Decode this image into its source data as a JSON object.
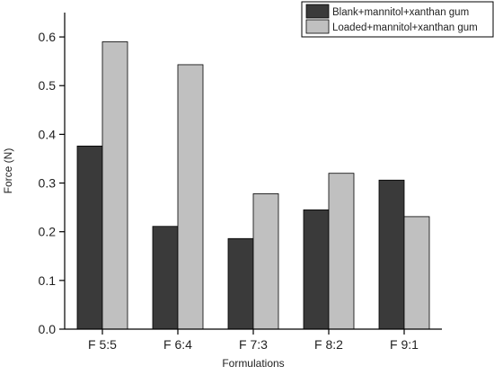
{
  "chart_data": {
    "type": "bar",
    "xlabel": "Formulations",
    "ylabel": "Force (N)",
    "categories": [
      "F 5:5",
      "F 6:4",
      "F 7:3",
      "F 8:2",
      "F 9:1"
    ],
    "series": [
      {
        "name": "Blank+mannitol+xanthan gum",
        "color": "#3a3a3a",
        "values": [
          0.376,
          0.211,
          0.186,
          0.245,
          0.306
        ]
      },
      {
        "name": "Loaded+mannitol+xanthan gum",
        "color": "#c0c0c0",
        "values": [
          0.59,
          0.543,
          0.278,
          0.32,
          0.231
        ]
      }
    ],
    "ylim": [
      0,
      0.65
    ],
    "yticks": [
      "0.0",
      "0.1",
      "0.2",
      "0.3",
      "0.4",
      "0.5",
      "0.6"
    ],
    "grid": false,
    "legend_position": "top-right"
  }
}
